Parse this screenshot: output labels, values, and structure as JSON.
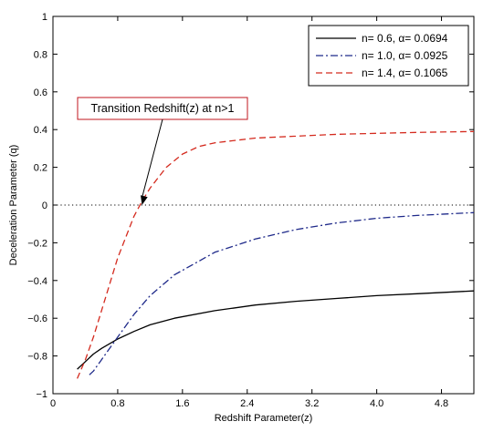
{
  "chart_data": {
    "type": "line",
    "title": "",
    "xlabel": "Redshift Parameter(z)",
    "ylabel": "Deceleration Parameter (q)",
    "xlim": [
      0,
      5.2
    ],
    "ylim": [
      -1,
      1
    ],
    "xticks": [
      0,
      0.8,
      1.6,
      2.4,
      3.2,
      4.0,
      4.8
    ],
    "xtick_labels": [
      "0",
      "0.8",
      "1.6",
      "2.4",
      "3.2",
      "4.0",
      "4.8"
    ],
    "yticks": [
      -1,
      -0.8,
      -0.6,
      -0.4,
      -0.2,
      0,
      0.2,
      0.4,
      0.6,
      0.8,
      1
    ],
    "ytick_labels": [
      "−1",
      "−0.8",
      "−0.6",
      "−0.4",
      "−0.2",
      "0",
      "0.2",
      "0.4",
      "0.6",
      "0.8",
      "1"
    ],
    "grid": false,
    "legend_position": "top-right",
    "series": [
      {
        "name": "n= 0.6, α= 0.0694",
        "color": "#000000",
        "style": "solid",
        "x": [
          0.3,
          0.4,
          0.5,
          0.6,
          0.8,
          1.0,
          1.2,
          1.5,
          2.0,
          2.5,
          3.0,
          3.5,
          4.0,
          4.5,
          5.2
        ],
        "y": [
          -0.87,
          -0.83,
          -0.79,
          -0.76,
          -0.71,
          -0.67,
          -0.635,
          -0.6,
          -0.56,
          -0.53,
          -0.51,
          -0.495,
          -0.48,
          -0.47,
          -0.455
        ]
      },
      {
        "name": "n= 1.0, α= 0.0925",
        "color": "#1f2a8a",
        "style": "dashdot",
        "x": [
          0.45,
          0.5,
          0.6,
          0.8,
          1.0,
          1.2,
          1.5,
          2.0,
          2.5,
          3.0,
          3.5,
          4.0,
          4.5,
          5.2
        ],
        "y": [
          -0.9,
          -0.88,
          -0.82,
          -0.7,
          -0.58,
          -0.48,
          -0.37,
          -0.25,
          -0.18,
          -0.13,
          -0.095,
          -0.07,
          -0.055,
          -0.04
        ]
      },
      {
        "name": "n= 1.4, α= 0.1065",
        "color": "#d42a1e",
        "style": "dashed",
        "x": [
          0.3,
          0.4,
          0.5,
          0.6,
          0.8,
          1.0,
          1.1,
          1.2,
          1.4,
          1.6,
          1.8,
          2.0,
          2.5,
          3.0,
          3.5,
          4.0,
          4.5,
          5.2
        ],
        "y": [
          -0.92,
          -0.82,
          -0.7,
          -0.56,
          -0.28,
          -0.06,
          0.02,
          0.09,
          0.2,
          0.27,
          0.31,
          0.33,
          0.355,
          0.365,
          0.375,
          0.38,
          0.385,
          0.39
        ]
      }
    ],
    "reference_line": {
      "y": 0,
      "style": "dotted",
      "color": "#000000"
    },
    "annotation": {
      "text": "Transition Redshift(z) at n>1",
      "box_color": "#c0141e",
      "arrow_target": {
        "x": 1.1,
        "y": 0
      }
    }
  }
}
